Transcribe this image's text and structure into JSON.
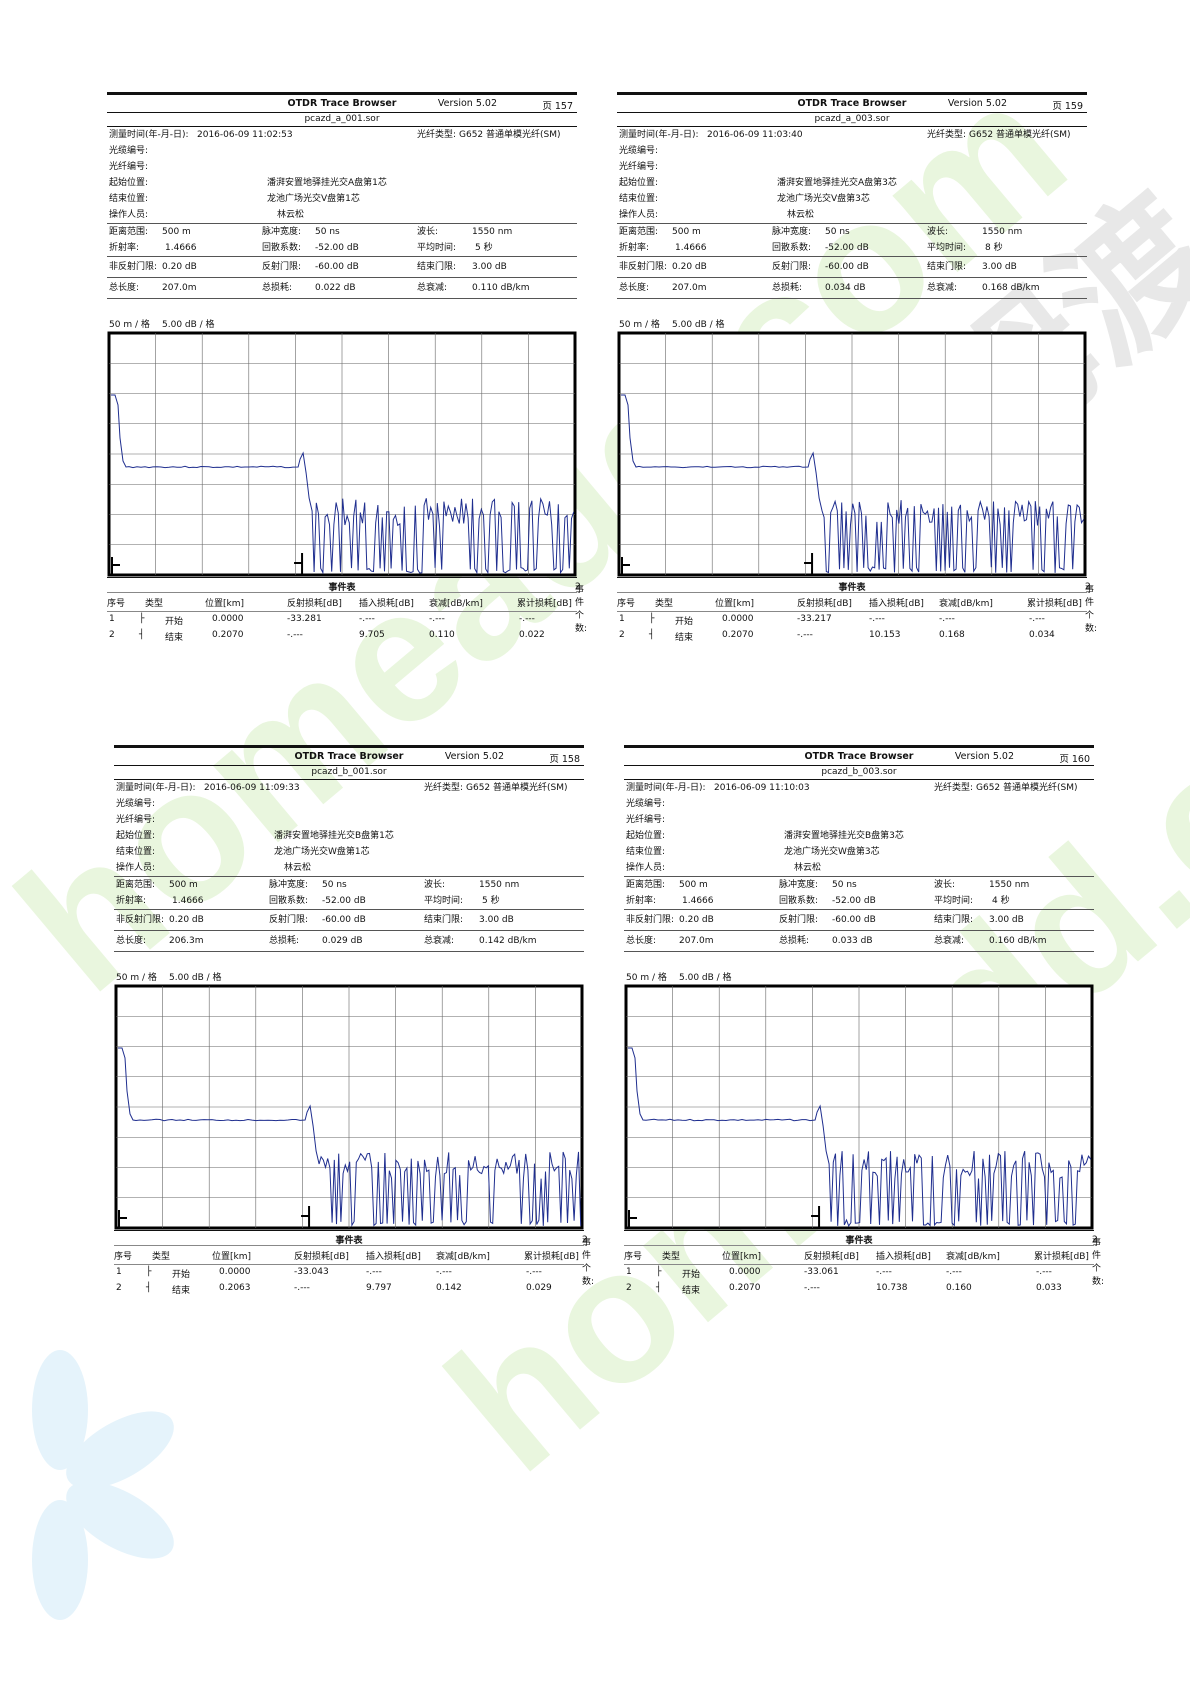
{
  "labels": {
    "app_title": "OTDR Trace Browser",
    "version": "Version 5.02",
    "page_prefix": "页",
    "measure_time": "测量时间(年-月-日):",
    "fiber_type_label": "光纤类型:",
    "cable_no": "光缆编号:",
    "fiber_no": "光纤编号:",
    "start_loc": "起始位置:",
    "end_loc": "结束位置:",
    "operator": "操作人员:",
    "dist_range": "距离范围:",
    "pulse_width": "脉冲宽度:",
    "wavelength": "波长:",
    "ior": "折射率:",
    "backscatter": "回散系数:",
    "avg_time": "平均时间:",
    "nonreflect_thr": "非反射门限:",
    "reflect_thr": "反射门限:",
    "end_thr": "结束门限:",
    "total_length": "总长度:",
    "total_loss": "总损耗:",
    "total_atten": "总衰减:",
    "event_table": "事件表",
    "event_count_label": "事件个数:",
    "col_no": "序号",
    "col_type": "类型",
    "col_pos": "位置[km]",
    "col_refl": "反射损耗[dB]",
    "col_ins": "插入损耗[dB]",
    "col_att": "衰减[dB/km]",
    "col_cum": "累计损耗[dB]"
  },
  "watermark": {
    "text": "homeadd.com",
    "brand": "河姆渡",
    "color_green": "#d7efc3",
    "color_blue": "#cfe9f7"
  },
  "reports": [
    {
      "page": "157",
      "file": "pcazd_a_001.sor",
      "date": "2016-06-09  11:02:53",
      "fiber_type": "G652 普通单模光纤(SM)",
      "start": "潘湃安置地驿挂光交A盘第1芯",
      "end": "龙池广场光交V盘第1芯",
      "operator_name": "林云松",
      "range": "500 m",
      "pulse": "50 ns",
      "wl": "1550 nm",
      "ior": "1.4666",
      "bs": "-52.00 dB",
      "avg": "5 秒",
      "nrt": "0.20 dB",
      "rt": "-60.00 dB",
      "et": "3.00 dB",
      "len": "207.0m",
      "loss": "0.022 dB",
      "att": "0.110 dB/km",
      "scale_x": "50 m / 格",
      "scale_y": "5.00 dB / 格",
      "event_count": "2",
      "events": [
        {
          "no": "1",
          "type": "开始",
          "pos": "0.0000",
          "refl": "-33.281",
          "ins": "-.---",
          "att": "-.---",
          "cum": "-.---"
        },
        {
          "no": "2",
          "type": "结束",
          "pos": "0.2070",
          "refl": "-.---",
          "ins": "9.705",
          "att": "0.110",
          "cum": "0.022"
        }
      ]
    },
    {
      "page": "159",
      "file": "pcazd_a_003.sor",
      "date": "2016-06-09  11:03:40",
      "fiber_type": "G652 普通单模光纤(SM)",
      "start": "潘湃安置地驿挂光交A盘第3芯",
      "end": "龙池广场光交V盘第3芯",
      "operator_name": "林云松",
      "range": "500 m",
      "pulse": "50 ns",
      "wl": "1550 nm",
      "ior": "1.4666",
      "bs": "-52.00 dB",
      "avg": "8 秒",
      "nrt": "0.20 dB",
      "rt": "-60.00 dB",
      "et": "3.00 dB",
      "len": "207.0m",
      "loss": "0.034 dB",
      "att": "0.168 dB/km",
      "scale_x": "50 m / 格",
      "scale_y": "5.00 dB / 格",
      "event_count": "2",
      "events": [
        {
          "no": "1",
          "type": "开始",
          "pos": "0.0000",
          "refl": "-33.217",
          "ins": "-.---",
          "att": "-.---",
          "cum": "-.---"
        },
        {
          "no": "2",
          "type": "结束",
          "pos": "0.2070",
          "refl": "-.---",
          "ins": "10.153",
          "att": "0.168",
          "cum": "0.034"
        }
      ]
    },
    {
      "page": "158",
      "file": "pcazd_b_001.sor",
      "date": "2016-06-09  11:09:33",
      "fiber_type": "G652 普通单模光纤(SM)",
      "start": "潘湃安置地驿挂光交B盘第1芯",
      "end": "龙池广场光交W盘第1芯",
      "operator_name": "林云松",
      "range": "500 m",
      "pulse": "50 ns",
      "wl": "1550 nm",
      "ior": "1.4666",
      "bs": "-52.00 dB",
      "avg": "5 秒",
      "nrt": "0.20 dB",
      "rt": "-60.00 dB",
      "et": "3.00 dB",
      "len": "206.3m",
      "loss": "0.029 dB",
      "att": "0.142 dB/km",
      "scale_x": "50 m / 格",
      "scale_y": "5.00 dB / 格",
      "event_count": "2",
      "events": [
        {
          "no": "1",
          "type": "开始",
          "pos": "0.0000",
          "refl": "-33.043",
          "ins": "-.---",
          "att": "-.---",
          "cum": "-.---"
        },
        {
          "no": "2",
          "type": "结束",
          "pos": "0.2063",
          "refl": "-.---",
          "ins": "9.797",
          "att": "0.142",
          "cum": "0.029"
        }
      ]
    },
    {
      "page": "160",
      "file": "pcazd_b_003.sor",
      "date": "2016-06-09  11:10:03",
      "fiber_type": "G652 普通单模光纤(SM)",
      "start": "潘湃安置地驿挂光交B盘第3芯",
      "end": "龙池广场光交W盘第3芯",
      "operator_name": "林云松",
      "range": "500 m",
      "pulse": "50 ns",
      "wl": "1550 nm",
      "ior": "1.4666",
      "bs": "-52.00 dB",
      "avg": "4 秒",
      "nrt": "0.20 dB",
      "rt": "-60.00 dB",
      "et": "3.00 dB",
      "len": "207.0m",
      "loss": "0.033 dB",
      "att": "0.160 dB/km",
      "scale_x": "50 m / 格",
      "scale_y": "5.00 dB / 格",
      "event_count": "2",
      "events": [
        {
          "no": "1",
          "type": "开始",
          "pos": "0.0000",
          "refl": "-33.061",
          "ins": "-.---",
          "att": "-.---",
          "cum": "-.---"
        },
        {
          "no": "2",
          "type": "结束",
          "pos": "0.2070",
          "refl": "-.---",
          "ins": "10.738",
          "att": "0.160",
          "cum": "0.033"
        }
      ]
    }
  ],
  "trace_color": "#1f2e8f"
}
